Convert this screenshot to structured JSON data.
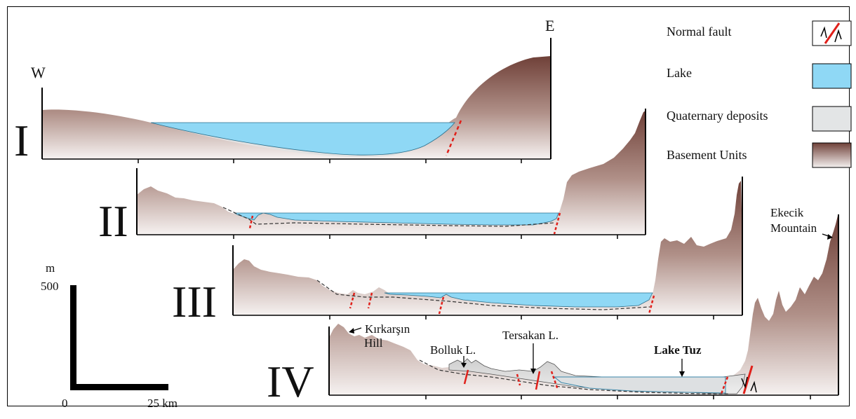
{
  "profiles": [
    {
      "id": "I",
      "label": "I"
    },
    {
      "id": "II",
      "label": "II"
    },
    {
      "id": "III",
      "label": "III"
    },
    {
      "id": "IV",
      "label": "IV"
    }
  ],
  "directions": {
    "west": "W",
    "east": "E"
  },
  "legend": {
    "normal_fault": "Normal fault",
    "lake": "Lake",
    "quaternary": "Quaternary deposits",
    "basement": "Basement Units"
  },
  "places": {
    "kirkarsin_line1": "Kırkarşın",
    "kirkarsin_line2": "Hill",
    "bolluk": "Bolluk L.",
    "tersakan": "Tersakan L.",
    "lake_tuz": "Lake Tuz",
    "ekecik_line1": "Ekecik",
    "ekecik_line2": "Mountain"
  },
  "scale_bar": {
    "unit": "m",
    "vertical_value": "500",
    "origin": "0",
    "horizontal_value": "25 km"
  },
  "colors": {
    "lake": "#8fd8f5",
    "basement_dark": "#7a4d44",
    "basement_light": "#f4f0ef",
    "quaternary": "#dcdcdc",
    "fault": "#e0201a",
    "frame": "#000000"
  }
}
